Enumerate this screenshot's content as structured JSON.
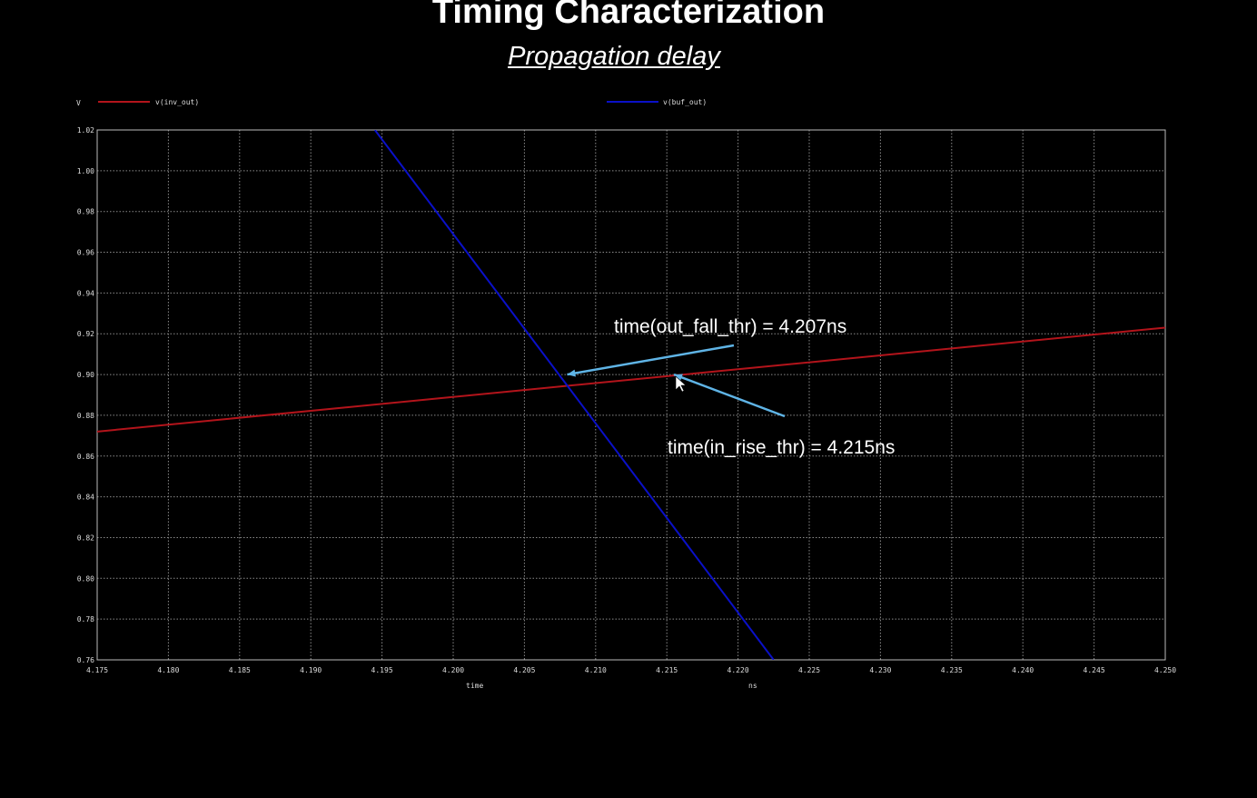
{
  "slide": {
    "title": "Timing Characterization",
    "subtitle": "Propagation delay"
  },
  "chart_data": {
    "type": "line",
    "y_unit_label": "V",
    "xlabel": "time",
    "x_unit": "ns",
    "xlim": [
      4.175,
      4.25
    ],
    "ylim": [
      0.76,
      1.02
    ],
    "grid": true,
    "x_ticks": [
      "4.175",
      "4.180",
      "4.185",
      "4.190",
      "4.195",
      "4.200",
      "4.205",
      "4.210",
      "4.215",
      "4.220",
      "4.225",
      "4.230",
      "4.235",
      "4.240",
      "4.245",
      "4.250"
    ],
    "y_ticks": [
      "0.76",
      "0.78",
      "0.80",
      "0.82",
      "0.84",
      "0.86",
      "0.88",
      "0.90",
      "0.92",
      "0.94",
      "0.96",
      "0.98",
      "1.00",
      "1.02"
    ],
    "series": [
      {
        "name": "v(inv_out)",
        "color": "#b3141b",
        "x": [
          4.175,
          4.25
        ],
        "y": [
          0.872,
          0.923
        ]
      },
      {
        "name": "v(buf_out)",
        "color": "#0a10c8",
        "x": [
          4.1945,
          4.2225
        ],
        "y": [
          1.02,
          0.76
        ]
      }
    ],
    "annotations": [
      {
        "text": "time(out_fall_thr) = 4.207ns",
        "color": "#5fb4e6",
        "target": [
          4.208,
          0.9
        ]
      },
      {
        "text": "time(in_rise_thr) = 4.215ns",
        "color": "#5fb4e6",
        "target": [
          4.2155,
          0.9
        ]
      }
    ]
  }
}
